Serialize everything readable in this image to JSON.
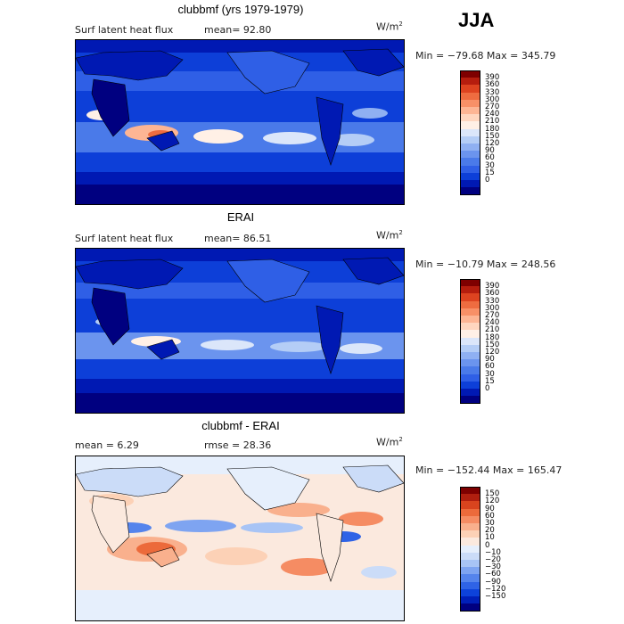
{
  "season": "JJA",
  "colors": {
    "positive_field_palette": [
      "#000080",
      "#0019b3",
      "#0d3fd8",
      "#2f5fe6",
      "#4a7ae9",
      "#6b94ee",
      "#8fb0f2",
      "#b4cdf6",
      "#dbe6fa",
      "#fff0e6",
      "#ffd6bf",
      "#fdb594",
      "#f89067",
      "#ee6c40",
      "#dd4320",
      "#b51d0e",
      "#7e0000"
    ],
    "difference_palette": [
      "#000080",
      "#001fb8",
      "#0d42da",
      "#2f63e6",
      "#5584ec",
      "#7ea4f1",
      "#a8c4f5",
      "#cbdcf8",
      "#e6effc",
      "#fbe9de",
      "#fcd1b6",
      "#f9b08d",
      "#f58c63",
      "#ec6a3b",
      "#d9441e",
      "#b01f0f",
      "#7e0000"
    ]
  },
  "chart_data": [
    {
      "type": "heatmap",
      "title": "clubbmf (yrs 1979-1979)",
      "subtitle_left": "Surf latent heat flux",
      "mean_text": "mean=   92.80",
      "units_text": "W/m",
      "units_sup": "2",
      "minmax_text": "Min = −79.68 Max = 345.79",
      "levels": [
        "390",
        "360",
        "330",
        "300",
        "270",
        "240",
        "210",
        "180",
        "150",
        "120",
        "90",
        "60",
        "30",
        "15",
        "0"
      ],
      "level_values": [
        0,
        15,
        30,
        60,
        90,
        120,
        150,
        180,
        210,
        240,
        270,
        300,
        330,
        360,
        390
      ],
      "min": -79.68,
      "max": 345.79,
      "mean": 92.8
    },
    {
      "type": "heatmap",
      "title": "ERAI",
      "subtitle_left": "Surf latent heat flux",
      "mean_text": "mean=   86.51",
      "units_text": "W/m",
      "units_sup": "2",
      "minmax_text": "Min = −10.79 Max = 248.56",
      "levels": [
        "390",
        "360",
        "330",
        "300",
        "270",
        "240",
        "210",
        "180",
        "150",
        "120",
        "90",
        "60",
        "30",
        "15",
        "0"
      ],
      "level_values": [
        0,
        15,
        30,
        60,
        90,
        120,
        150,
        180,
        210,
        240,
        270,
        300,
        330,
        360,
        390
      ],
      "min": -10.79,
      "max": 248.56,
      "mean": 86.51
    },
    {
      "type": "heatmap",
      "title": "clubbmf - ERAI",
      "mean_text": "mean =    6.29",
      "rmse_text": "rmse =   28.36",
      "units_text": "W/m",
      "units_sup": "2",
      "minmax_text": "Min = −152.44 Max = 165.47",
      "levels": [
        "150",
        "120",
        "90",
        "60",
        "30",
        "20",
        "10",
        "0",
        "−10",
        "−20",
        "−30",
        "−60",
        "−90",
        "−120",
        "−150"
      ],
      "level_values": [
        -150,
        -120,
        -90,
        -60,
        -30,
        -20,
        -10,
        0,
        10,
        20,
        30,
        60,
        90,
        120,
        150
      ],
      "min": -152.44,
      "max": 165.47,
      "mean": 6.29,
      "rmse": 28.36
    }
  ]
}
